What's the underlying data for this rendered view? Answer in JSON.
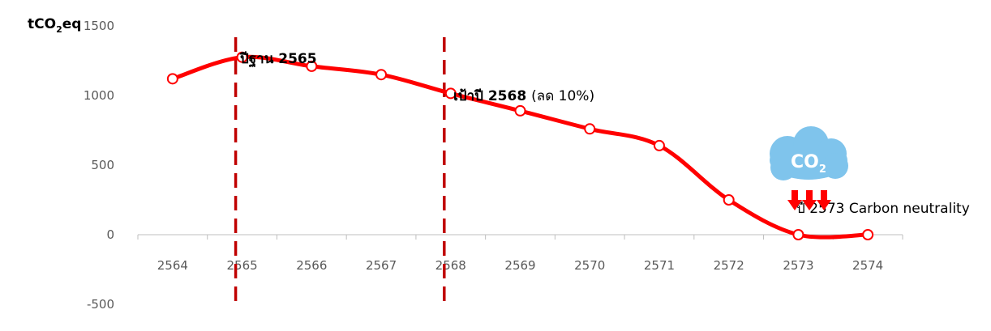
{
  "chart_data": {
    "type": "line",
    "ylabel_main": "tCO",
    "ylabel_sub": "2",
    "ylabel_suffix": "eq",
    "ylim": [
      -500,
      1500
    ],
    "yticks": [
      -500,
      0,
      500,
      1000,
      1500
    ],
    "categories": [
      "2564",
      "2565",
      "2566",
      "2567",
      "2568",
      "2569",
      "2570",
      "2571",
      "2572",
      "2573",
      "2574"
    ],
    "series": [
      {
        "values": [
          1120,
          1275,
          1210,
          1150,
          1015,
          890,
          760,
          640,
          250,
          0,
          0
        ],
        "color": "#ff0000",
        "smooth": true,
        "markers": "open-circle"
      }
    ],
    "reference_lines": [
      {
        "x": "2565",
        "color": "#c00000",
        "style": "dashed"
      },
      {
        "x": "2568",
        "color": "#c00000",
        "style": "dashed"
      }
    ],
    "annotations": {
      "base_year": "ปีฐาน 2565",
      "target_bold": "เป้าปี 2568",
      "target_note": "(ลด 10%)",
      "neutral": "ปี 2573 Carbon neutrality",
      "cloud_main": "CO",
      "cloud_sub": "2"
    },
    "icon": "co2-cloud-with-down-arrows",
    "colors": {
      "line": "#ff0000",
      "ref_line": "#c00000",
      "cloud": "#7fc4ec",
      "arrows": "#ff0000",
      "axis": "#bfbfbf"
    }
  }
}
